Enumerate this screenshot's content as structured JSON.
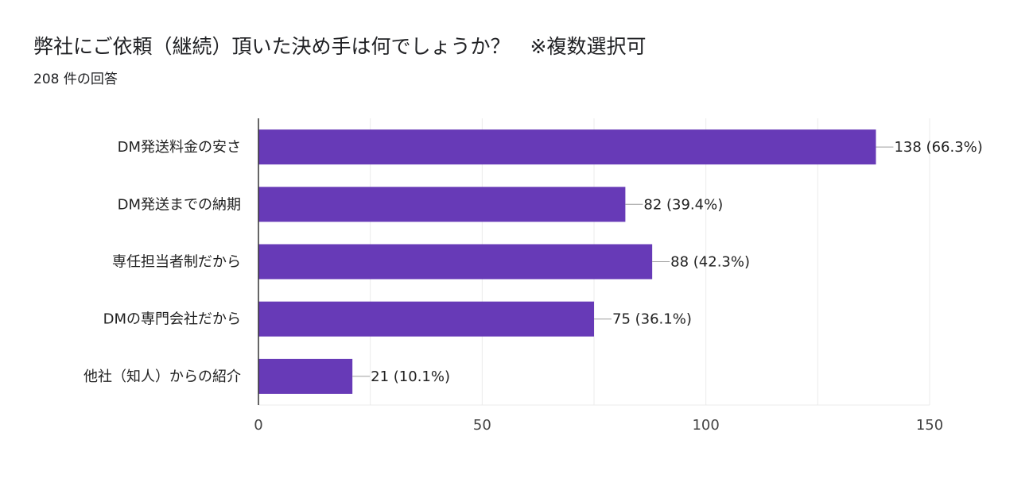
{
  "header": {
    "question": "弊社にご依頼（継続）頂いた決め手は何でしょうか？　※複数選択可",
    "response_count": "208 件の回答"
  },
  "colors": {
    "bar": "#673ab7",
    "grid": "#ebebeb",
    "axis": "#333333",
    "leader": "#9e9e9e"
  },
  "chart_data": {
    "type": "bar",
    "orientation": "horizontal",
    "title": "弊社にご依頼（継続）頂いた決め手は何でしょうか？　※複数選択可",
    "categories": [
      "DM発送料金の安さ",
      "DM発送までの納期",
      "専任担当者制だから",
      "DMの専門会社だから",
      "他社（知人）からの紹介"
    ],
    "values": [
      138,
      82,
      88,
      75,
      21
    ],
    "value_labels": [
      "138 (66.3%)",
      "82 (39.4%)",
      "88 (42.3%)",
      "75 (36.1%)",
      "21 (10.1%)"
    ],
    "xlim": [
      0,
      150
    ],
    "x_ticks": [
      0,
      50,
      100,
      150
    ],
    "x_tick_labels": [
      "0",
      "50",
      "100",
      "150"
    ],
    "xlabel": "",
    "ylabel": "",
    "grid": true
  }
}
